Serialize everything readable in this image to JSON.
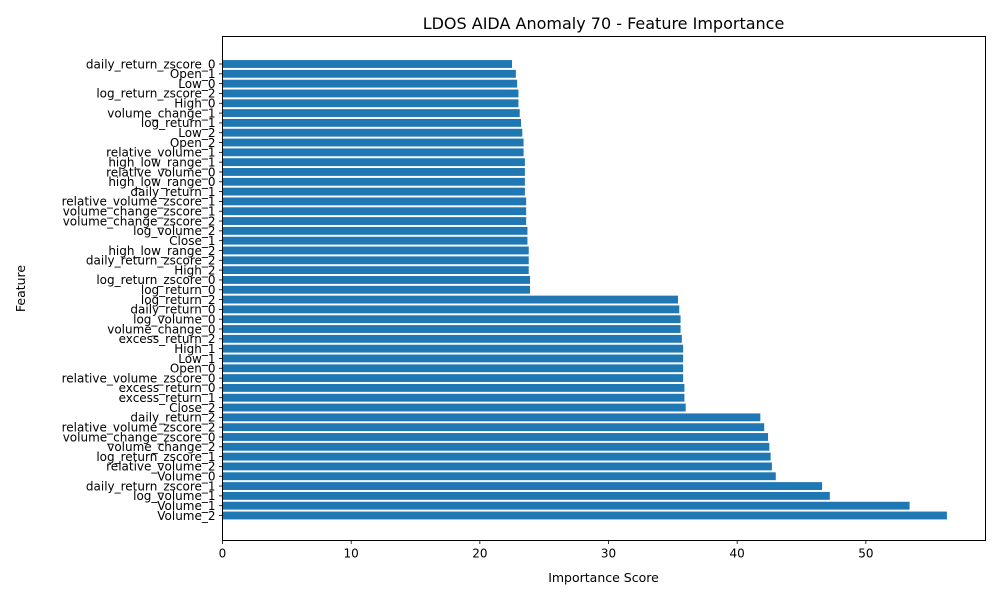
{
  "chart_data": {
    "type": "bar",
    "orientation": "horizontal",
    "title": "LDOS AIDA Anomaly 70 - Feature Importance",
    "xlabel": "Importance Score",
    "ylabel": "Feature",
    "xlim": [
      0,
      59.3
    ],
    "xticks": [
      "0",
      "10",
      "20",
      "30",
      "40",
      "50"
    ],
    "bar_color": "#1f77b4",
    "grid": false,
    "categories": [
      "daily_return_zscore_0",
      "Open_1",
      "Low_0",
      "log_return_zscore_2",
      "High_0",
      "volume_change_1",
      "log_return_1",
      "Low_2",
      "Open_2",
      "relative_volume_1",
      "high_low_range_1",
      "relative_volume_0",
      "high_low_range_0",
      "daily_return_1",
      "relative_volume_zscore_1",
      "volume_change_zscore_1",
      "volume_change_zscore_2",
      "log_volume_2",
      "Close_1",
      "high_low_range_2",
      "daily_return_zscore_2",
      "High_2",
      "log_return_zscore_0",
      "log_return_0",
      "log_return_2",
      "daily_return_0",
      "log_volume_0",
      "volume_change_0",
      "excess_return_2",
      "High_1",
      "Low_1",
      "Open_0",
      "relative_volume_zscore_0",
      "excess_return_0",
      "excess_return_1",
      "Close_2",
      "daily_return_2",
      "relative_volume_zscore_2",
      "volume_change_zscore_0",
      "volume_change_2",
      "log_return_zscore_1",
      "relative_volume_2",
      "Volume_0",
      "daily_return_zscore_1",
      "log_volume_1",
      "Volume_1",
      "Volume_2"
    ],
    "values": [
      22.5,
      22.8,
      22.9,
      23.0,
      23.0,
      23.1,
      23.2,
      23.3,
      23.4,
      23.4,
      23.5,
      23.5,
      23.5,
      23.5,
      23.6,
      23.6,
      23.6,
      23.7,
      23.7,
      23.8,
      23.8,
      23.8,
      23.9,
      23.9,
      35.4,
      35.5,
      35.6,
      35.6,
      35.7,
      35.8,
      35.8,
      35.8,
      35.8,
      35.9,
      35.9,
      36.0,
      41.8,
      42.1,
      42.4,
      42.5,
      42.6,
      42.7,
      43.0,
      46.6,
      47.2,
      53.4,
      56.3
    ]
  }
}
